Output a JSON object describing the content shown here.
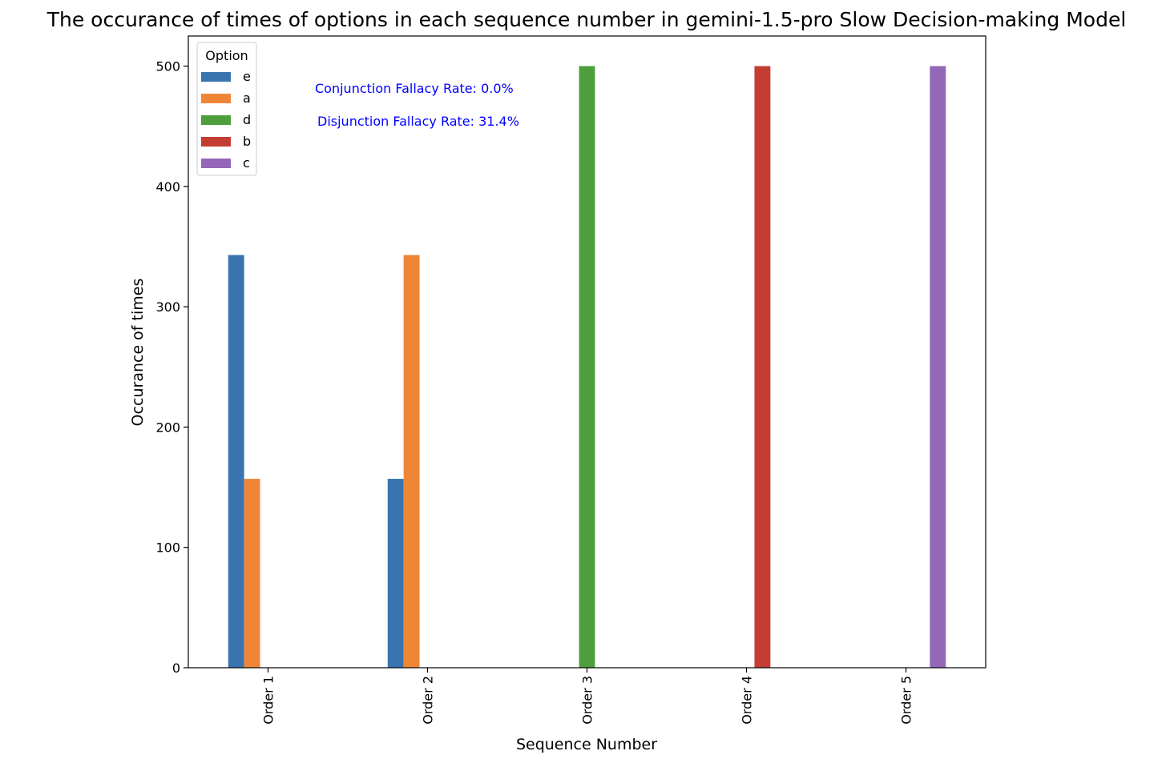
{
  "chart_data": {
    "type": "bar",
    "title": "The occurance of times of options in each sequence number in gemini-1.5-pro Slow Decision-making Model",
    "xlabel": "Sequence Number",
    "ylabel": "Occurance of times",
    "categories": [
      "Order 1",
      "Order 2",
      "Order 3",
      "Order 4",
      "Order 5"
    ],
    "ylim": [
      0,
      525
    ],
    "yticks": [
      0,
      100,
      200,
      300,
      400,
      500
    ],
    "grid": false,
    "legend": {
      "title": "Option",
      "placement": "top-left"
    },
    "series": [
      {
        "name": "e",
        "color": "#3a74b0",
        "values": [
          343,
          157,
          0,
          0,
          0
        ]
      },
      {
        "name": "a",
        "color": "#ef8637",
        "values": [
          157,
          343,
          0,
          0,
          0
        ]
      },
      {
        "name": "d",
        "color": "#4f9e3d",
        "values": [
          0,
          0,
          500,
          0,
          0
        ]
      },
      {
        "name": "b",
        "color": "#c43d32",
        "values": [
          0,
          0,
          0,
          500,
          0
        ]
      },
      {
        "name": "c",
        "color": "#9467b8",
        "values": [
          0,
          0,
          0,
          0,
          500
        ]
      }
    ],
    "annotations": [
      {
        "text": "Conjunction Fallacy Rate: 0.0%",
        "color": "#0000ff"
      },
      {
        "text": "Disjunction Fallacy Rate: 31.4%",
        "color": "#0000ff"
      }
    ]
  }
}
